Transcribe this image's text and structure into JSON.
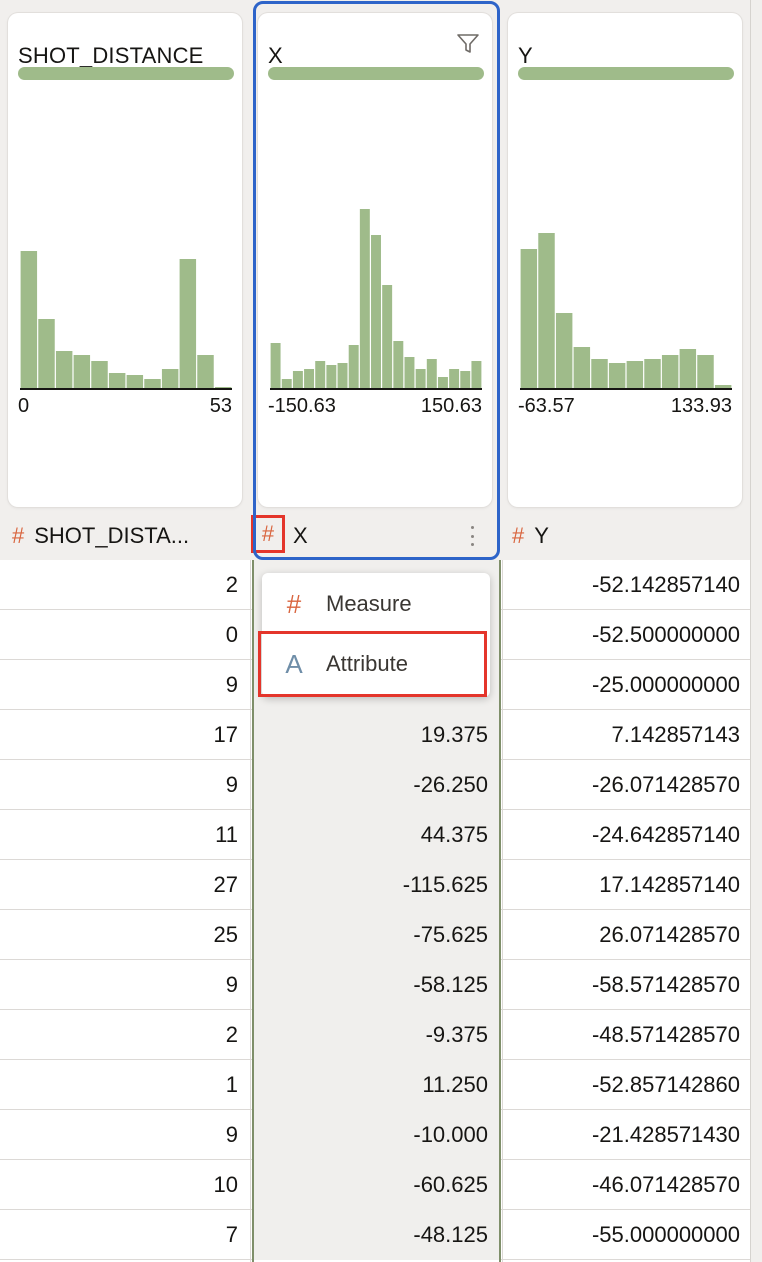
{
  "columns": [
    {
      "name": "SHOT_DISTANCE",
      "header_label": "SHOT_DISTA...",
      "axis_min": "0",
      "axis_max": "53"
    },
    {
      "name": "X",
      "header_label": "X",
      "axis_min": "-150.63",
      "axis_max": "150.63"
    },
    {
      "name": "Y",
      "header_label": "Y",
      "axis_min": "-63.57",
      "axis_max": "133.93"
    }
  ],
  "type_icon": "#",
  "bar_color": "#9fbb8a",
  "accent_selected": "#2e64c9",
  "highlight_color": "#e4352b",
  "chart_data": [
    {
      "type": "bar",
      "title": "SHOT_DISTANCE",
      "xlim": [
        "0",
        "53"
      ],
      "values": [
        69,
        35,
        19,
        17,
        14,
        8,
        7,
        5,
        10,
        65,
        17,
        1
      ]
    },
    {
      "type": "bar",
      "title": "X",
      "xlim": [
        "-150.63",
        "150.63"
      ],
      "values": [
        23,
        5,
        9,
        10,
        14,
        12,
        13,
        22,
        90,
        77,
        52,
        24,
        16,
        10,
        15,
        6,
        10,
        9,
        14
      ]
    },
    {
      "type": "bar",
      "title": "Y",
      "xlim": [
        "-63.57",
        "133.93"
      ],
      "values": [
        70,
        78,
        38,
        21,
        15,
        13,
        14,
        15,
        17,
        20,
        17,
        2
      ]
    }
  ],
  "menu": {
    "items": [
      {
        "icon": "#",
        "label": "Measure"
      },
      {
        "icon": "A",
        "label": "Attribute"
      }
    ]
  },
  "rows": [
    [
      "2",
      "",
      "-52.142857140"
    ],
    [
      "0",
      "",
      "-52.500000000"
    ],
    [
      "9",
      "",
      "-25.000000000"
    ],
    [
      "17",
      "19.375",
      "7.142857143"
    ],
    [
      "9",
      "-26.250",
      "-26.071428570"
    ],
    [
      "11",
      "44.375",
      "-24.642857140"
    ],
    [
      "27",
      "-115.625",
      "17.142857140"
    ],
    [
      "25",
      "-75.625",
      "26.071428570"
    ],
    [
      "9",
      "-58.125",
      "-58.571428570"
    ],
    [
      "2",
      "-9.375",
      "-48.571428570"
    ],
    [
      "1",
      "11.250",
      "-52.857142860"
    ],
    [
      "9",
      "-10.000",
      "-21.428571430"
    ],
    [
      "10",
      "-60.625",
      "-46.071428570"
    ],
    [
      "7",
      "-48.125",
      "-55.000000000"
    ]
  ]
}
